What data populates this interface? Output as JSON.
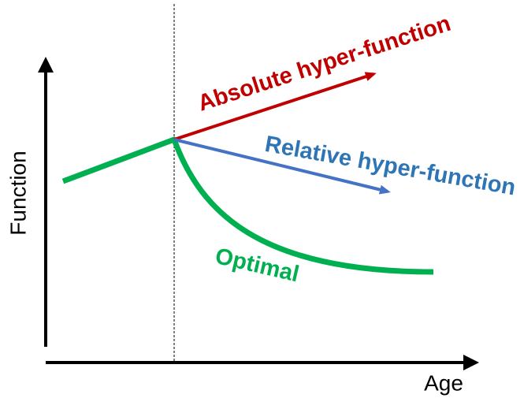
{
  "axes": {
    "y_label": "Function",
    "x_label": "Age"
  },
  "labels": {
    "absolute": "Absolute hyper-function",
    "relative": "Relative hyper-function",
    "optimal": "Optimal"
  }
}
